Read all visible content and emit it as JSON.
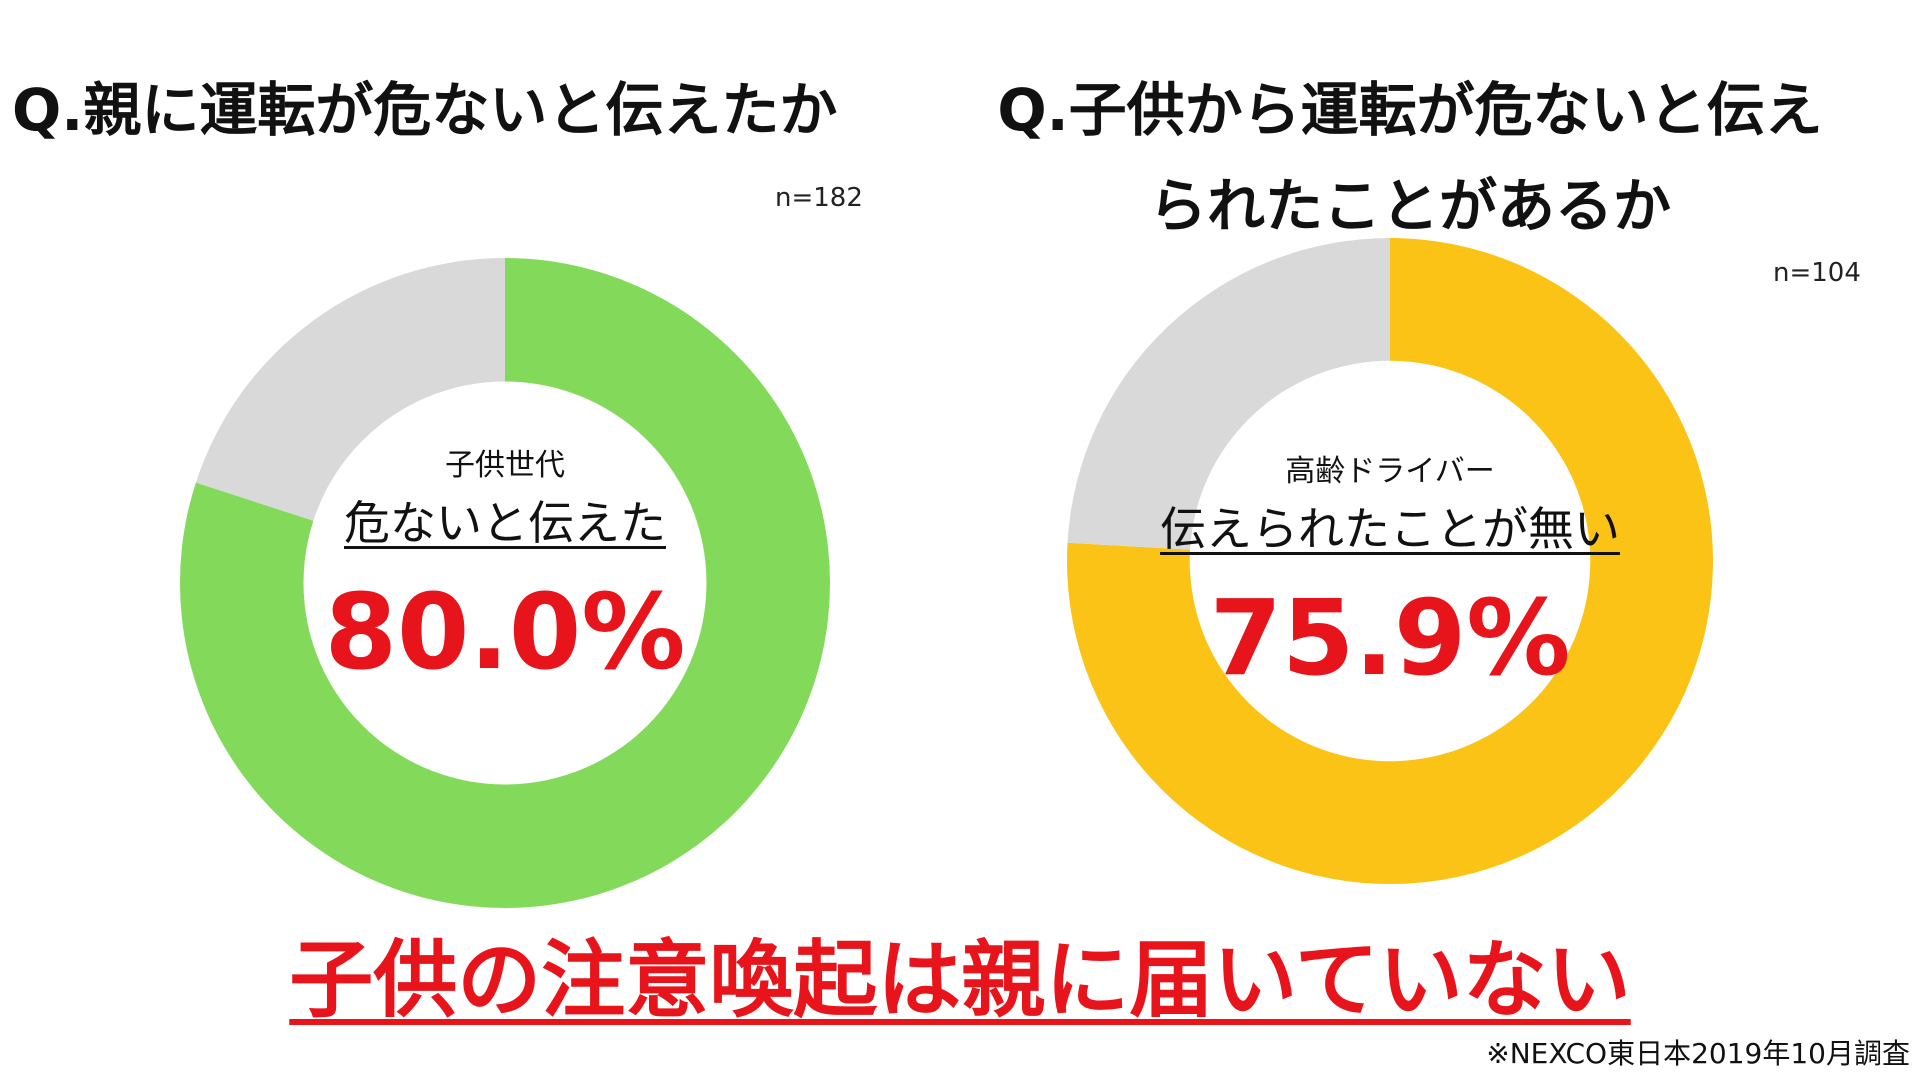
{
  "chart_data": [
    {
      "type": "pie",
      "title": "Q.親に運転が危ないと伝えたか",
      "sample_size": "n=182",
      "center_group": "子供世代",
      "center_statement": "危ないと伝えた",
      "highlight_label": "80.0%",
      "slices": [
        {
          "value": 80.0,
          "color": "#82d95a"
        },
        {
          "value": 20.0,
          "color": "#d9d9d9"
        }
      ]
    },
    {
      "type": "pie",
      "title": "Q.子供から運転が危ないと伝えられたことがあるか",
      "title_lines": [
        "Q.子供から運転が危ないと伝え",
        "られたことがあるか"
      ],
      "sample_size": "n=104",
      "center_group": "高齢ドライバー",
      "center_statement": "伝えられたことが無い",
      "highlight_label": "75.9%",
      "slices": [
        {
          "value": 75.9,
          "color": "#fbc315"
        },
        {
          "value": 24.1,
          "color": "#d9d9d9"
        }
      ]
    }
  ],
  "conclusion": "子供の注意喚起は親に届いていない",
  "source": "※NEXCO東日本2019年10月調査",
  "colors": {
    "accent_red": "#e8141b",
    "remainder_gray": "#d9d9d9"
  }
}
